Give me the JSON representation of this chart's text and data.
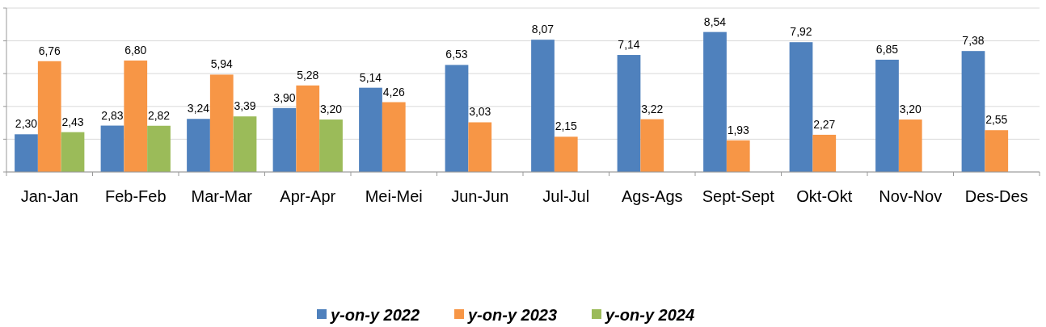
{
  "chart_data": {
    "type": "bar",
    "categories": [
      "Jan-Jan",
      "Feb-Feb",
      "Mar-Mar",
      "Apr-Apr",
      "Mei-Mei",
      "Jun-Jun",
      "Jul-Jul",
      "Ags-Ags",
      "Sept-Sept",
      "Okt-Okt",
      "Nov-Nov",
      "Des-Des"
    ],
    "series": [
      {
        "name": "y-on-y 2022",
        "color": "#4f81bd",
        "values": [
          2.3,
          2.83,
          3.24,
          3.9,
          5.14,
          6.53,
          8.07,
          7.14,
          8.54,
          7.92,
          6.85,
          7.38
        ],
        "value_labels": [
          "2,30",
          "2,83",
          "3,24",
          "3,90",
          "5,14",
          "6,53",
          "8,07",
          "7,14",
          "8,54",
          "7,92",
          "6,85",
          "7,38"
        ]
      },
      {
        "name": "y-on-y 2023",
        "color": "#f79646",
        "values": [
          6.76,
          6.8,
          5.94,
          5.28,
          4.26,
          3.03,
          2.15,
          3.22,
          1.93,
          2.27,
          3.2,
          2.55
        ],
        "value_labels": [
          "6,76",
          "6,80",
          "5,94",
          "5,28",
          "4,26",
          "3,03",
          "2,15",
          "3,22",
          "1,93",
          "2,27",
          "3,20",
          "2,55"
        ]
      },
      {
        "name": "y-on-y 2024",
        "color": "#9bbb59",
        "values": [
          2.43,
          2.82,
          3.39,
          3.2,
          null,
          null,
          null,
          null,
          null,
          null,
          null,
          null
        ],
        "value_labels": [
          "2,43",
          "2,82",
          "3,39",
          "3,20",
          null,
          null,
          null,
          null,
          null,
          null,
          null,
          null
        ]
      }
    ],
    "ylim": [
      0,
      10
    ],
    "yticks": [
      {
        "value": 0,
        "label": null
      },
      {
        "value": 2,
        "label": null
      },
      {
        "value": 4,
        "label": null
      },
      {
        "value": 6,
        "label": null
      },
      {
        "value": 8,
        "label": null
      },
      {
        "value": 10,
        "label": null
      }
    ],
    "tick_labels": "x",
    "grid": "y",
    "legend": "bottom"
  }
}
